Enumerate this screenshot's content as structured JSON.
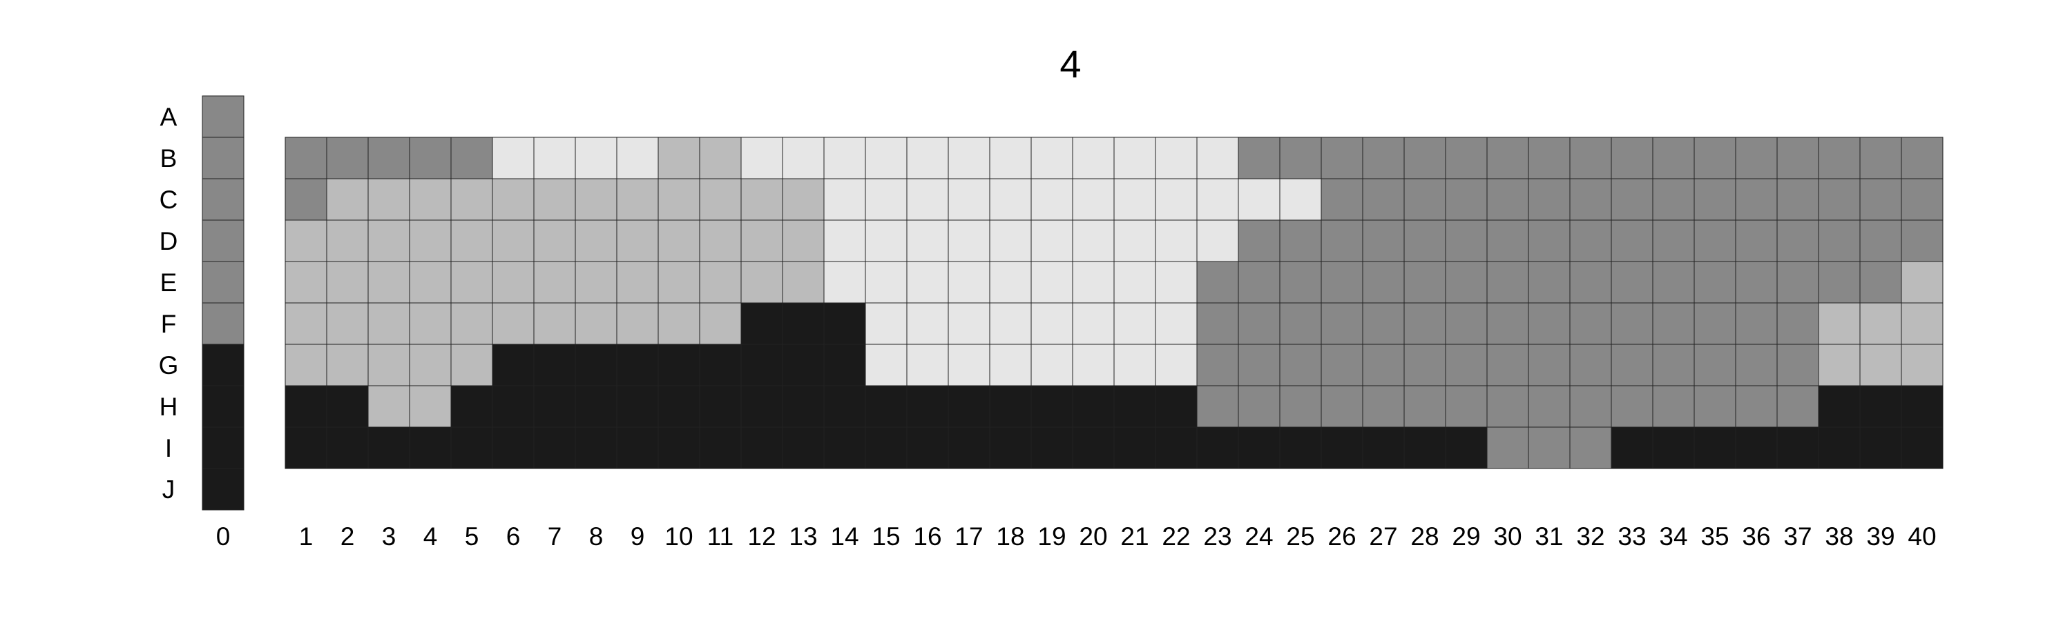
{
  "chart_data": {
    "type": "heatmap",
    "title": "4",
    "rows": [
      "A",
      "B",
      "C",
      "D",
      "E",
      "F",
      "G",
      "H",
      "I",
      "J"
    ],
    "columns": [
      "0",
      "1",
      "2",
      "3",
      "4",
      "5",
      "6",
      "7",
      "8",
      "9",
      "10",
      "11",
      "12",
      "13",
      "14",
      "15",
      "16",
      "17",
      "18",
      "19",
      "20",
      "21",
      "22",
      "23",
      "24",
      "25",
      "26",
      "27",
      "28",
      "29",
      "30",
      "31",
      "32",
      "33",
      "34",
      "35",
      "36",
      "37",
      "38",
      "39",
      "40"
    ],
    "palette": {
      "0": "#1a1a1a",
      "1": "#888888",
      "2": "#bbbbbb",
      "3": "#e6e6e6"
    },
    "key_column": {
      "label": "0",
      "values": [
        1,
        1,
        1,
        1,
        1,
        1,
        0,
        0,
        0,
        0
      ]
    },
    "grid": {
      "row_labels": [
        "B",
        "C",
        "D",
        "E",
        "F",
        "G",
        "H",
        "I"
      ],
      "values": [
        [
          1,
          1,
          1,
          1,
          1,
          3,
          3,
          3,
          3,
          2,
          2,
          3,
          3,
          3,
          3,
          3,
          3,
          3,
          3,
          3,
          3,
          3,
          3,
          1,
          1,
          1,
          1,
          1,
          1,
          1,
          1,
          1,
          1,
          1,
          1,
          1,
          1,
          1,
          1,
          1
        ],
        [
          1,
          2,
          2,
          2,
          2,
          2,
          2,
          2,
          2,
          2,
          2,
          2,
          2,
          3,
          3,
          3,
          3,
          3,
          3,
          3,
          3,
          3,
          3,
          3,
          3,
          1,
          1,
          1,
          1,
          1,
          1,
          1,
          1,
          1,
          1,
          1,
          1,
          1,
          1,
          1
        ],
        [
          2,
          2,
          2,
          2,
          2,
          2,
          2,
          2,
          2,
          2,
          2,
          2,
          2,
          3,
          3,
          3,
          3,
          3,
          3,
          3,
          3,
          3,
          3,
          1,
          1,
          1,
          1,
          1,
          1,
          1,
          1,
          1,
          1,
          1,
          1,
          1,
          1,
          1,
          1,
          1
        ],
        [
          2,
          2,
          2,
          2,
          2,
          2,
          2,
          2,
          2,
          2,
          2,
          2,
          2,
          3,
          3,
          3,
          3,
          3,
          3,
          3,
          3,
          3,
          1,
          1,
          1,
          1,
          1,
          1,
          1,
          1,
          1,
          1,
          1,
          1,
          1,
          1,
          1,
          1,
          1,
          2
        ],
        [
          2,
          2,
          2,
          2,
          2,
          2,
          2,
          2,
          2,
          2,
          2,
          0,
          0,
          0,
          3,
          3,
          3,
          3,
          3,
          3,
          3,
          3,
          1,
          1,
          1,
          1,
          1,
          1,
          1,
          1,
          1,
          1,
          1,
          1,
          1,
          1,
          1,
          2,
          2,
          2
        ],
        [
          2,
          2,
          2,
          2,
          2,
          0,
          0,
          0,
          0,
          0,
          0,
          0,
          0,
          0,
          3,
          3,
          3,
          3,
          3,
          3,
          3,
          3,
          1,
          1,
          1,
          1,
          1,
          1,
          1,
          1,
          1,
          1,
          1,
          1,
          1,
          1,
          1,
          2,
          2,
          2
        ],
        [
          0,
          0,
          2,
          2,
          0,
          0,
          0,
          0,
          0,
          0,
          0,
          0,
          0,
          0,
          0,
          0,
          0,
          0,
          0,
          0,
          0,
          0,
          1,
          1,
          1,
          1,
          1,
          1,
          1,
          1,
          1,
          1,
          1,
          1,
          1,
          1,
          1,
          0,
          0,
          0
        ],
        [
          0,
          0,
          0,
          0,
          0,
          0,
          0,
          0,
          0,
          0,
          0,
          0,
          0,
          0,
          0,
          0,
          0,
          0,
          0,
          0,
          0,
          0,
          0,
          0,
          0,
          0,
          0,
          0,
          0,
          1,
          1,
          1,
          0,
          0,
          0,
          0,
          0,
          0,
          0,
          0
        ]
      ]
    }
  }
}
